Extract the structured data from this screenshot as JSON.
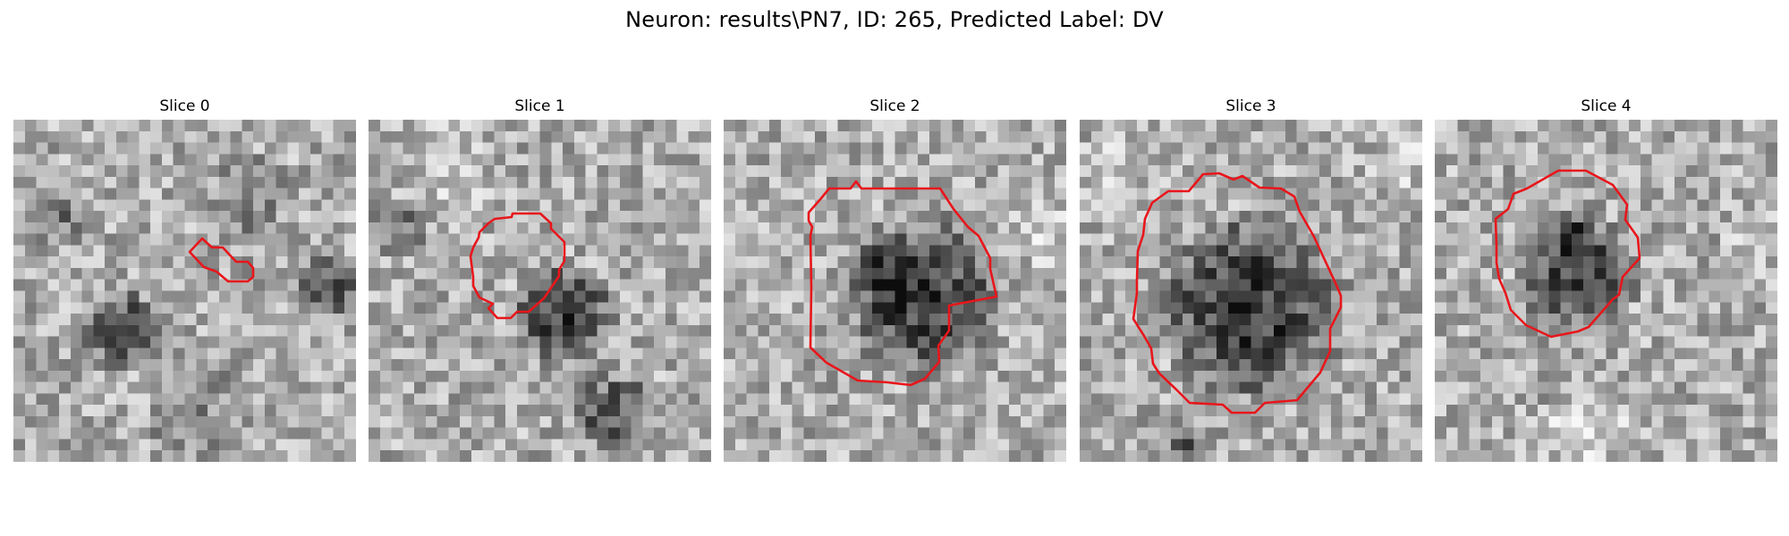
{
  "figure": {
    "title": "Neuron: results\\PN7, ID: 265, Predicted Label: DV",
    "contour_color": "#e8161b"
  },
  "panels": [
    {
      "title": "Slice 0"
    },
    {
      "title": "Slice 1"
    },
    {
      "title": "Slice 2"
    },
    {
      "title": "Slice 3"
    },
    {
      "title": "Slice 4"
    }
  ]
}
